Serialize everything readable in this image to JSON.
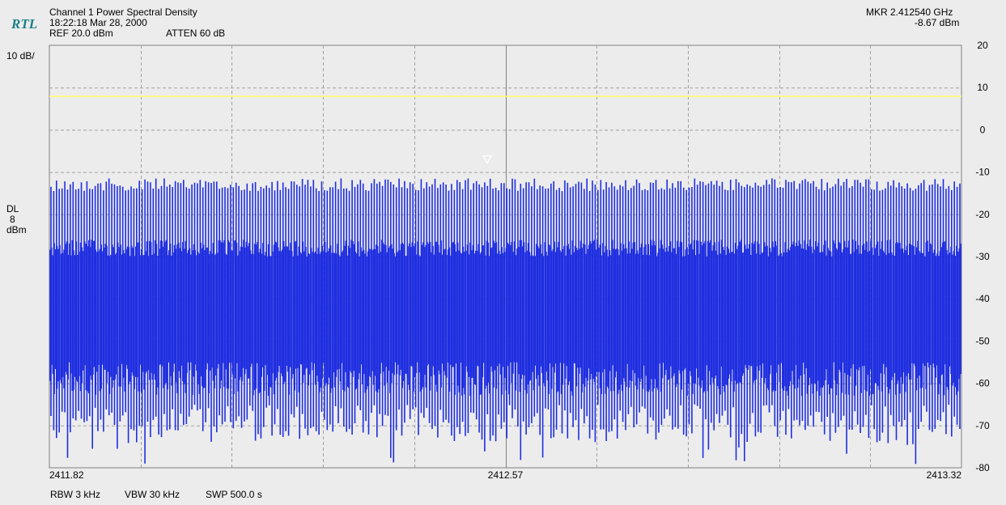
{
  "header": {
    "logo": "RTL",
    "title": "Channel 1 Power Spectral Density",
    "datetime": "18:22:18 Mar 28, 2000",
    "ref": "REF 20.0 dBm",
    "atten": "ATTEN 60  dB",
    "marker_freq": "MKR  2.412540 GHz",
    "marker_level": "-8.67 dBm"
  },
  "left_labels": {
    "scale": "10 dB/",
    "dl_line1": "DL",
    "dl_line2": "8",
    "dl_line3": "dBm"
  },
  "footer": {
    "rbw": "RBW 3 kHz",
    "vbw": "VBW 30 kHz",
    "swp": "SWP 500.0 s"
  },
  "colors": {
    "background": "#ececec",
    "grid_major": "#808080",
    "grid_dashed": "#a0a0a0",
    "trace": "#1f2ee0",
    "display_line": "#ffff66",
    "marker": "#ffffff"
  },
  "chart_data": {
    "type": "line",
    "title": "Channel 1 Power Spectral Density",
    "xlabel": "",
    "ylabel": "",
    "x_ticks": [
      "2411.82",
      "2412.57",
      "2413.32"
    ],
    "xlim": [
      2411.82,
      2413.32
    ],
    "y_ticks": [
      20,
      10,
      0,
      -10,
      -20,
      -30,
      -40,
      -50,
      -60,
      -70,
      -80
    ],
    "ylim": [
      -80,
      20
    ],
    "display_line_dbm": 8,
    "marker": {
      "x": 2412.54,
      "y": -8.67
    },
    "grid": true,
    "trace_summary": {
      "peak_level_dbm": -10,
      "floor_range_dbm": [
        -80,
        -65
      ],
      "dense_band_top_dbm": -26,
      "comb_line_count": 330
    }
  }
}
